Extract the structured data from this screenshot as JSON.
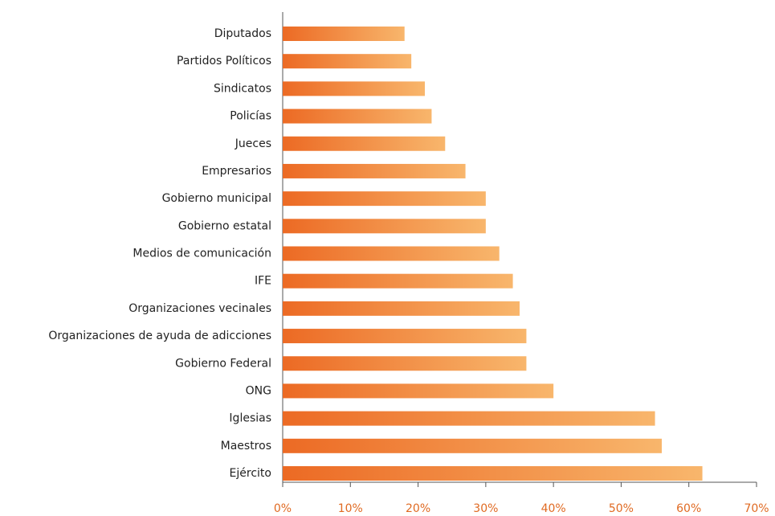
{
  "chart_data": {
    "type": "barh",
    "categories": [
      "Diputados",
      "Partidos Políticos",
      "Sindicatos",
      "Policías",
      "Jueces",
      "Empresarios",
      "Gobierno municipal",
      "Gobierno estatal",
      "Medios de comunicación",
      "IFE",
      "Organizaciones vecinales",
      "Organizaciones de ayuda de adicciones",
      "Gobierno Federal",
      "ONG",
      "Iglesias",
      "Maestros",
      "Ejército"
    ],
    "values": [
      18,
      19,
      21,
      22,
      24,
      27,
      30,
      30,
      32,
      34,
      35,
      36,
      36,
      40,
      55,
      56,
      62
    ],
    "gradient": [
      "#ec6a24",
      "#f8b66c"
    ],
    "xlim": [
      0,
      70
    ],
    "xticks": [
      {
        "value": 0,
        "label": "0%"
      },
      {
        "value": 10,
        "label": "10%"
      },
      {
        "value": 20,
        "label": "20%"
      },
      {
        "value": 30,
        "label": "30%"
      },
      {
        "value": 40,
        "label": "40%"
      },
      {
        "value": 50,
        "label": "50%"
      },
      {
        "value": 60,
        "label": "60%"
      },
      {
        "value": 70,
        "label": "70%"
      }
    ]
  }
}
